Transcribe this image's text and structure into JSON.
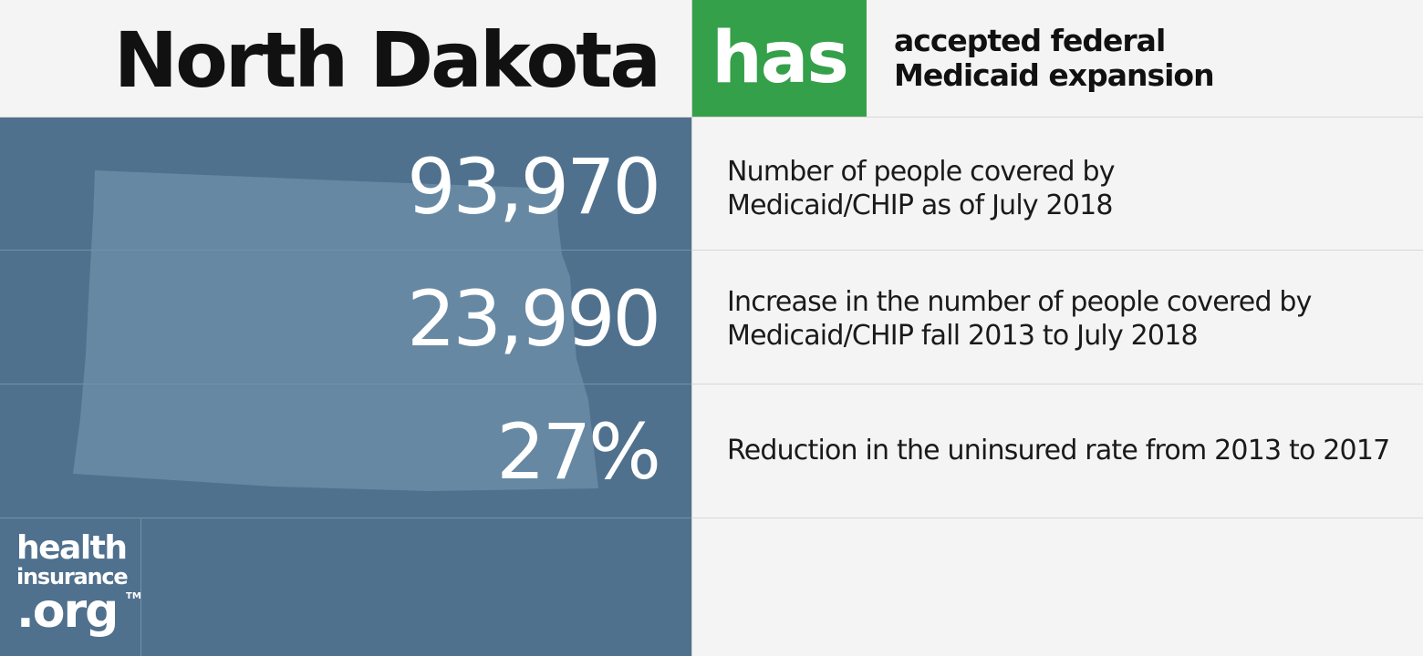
{
  "header": {
    "state_name": "North Dakota",
    "status_badge": "has",
    "status_line_1": "accepted federal",
    "status_line_2": "Medicaid expansion"
  },
  "colors": {
    "badge_green": "#35a04a",
    "panel_blue": "#4f718e",
    "state_shape": "#6688a2",
    "background": "#f4f4f4"
  },
  "stats": [
    {
      "value": "93,970",
      "desc_line_1": "Number of people covered by",
      "desc_line_2": "Medicaid/CHIP as of July 2018"
    },
    {
      "value": "23,990",
      "desc_line_1": "Increase in the number of people covered by",
      "desc_line_2": "Medicaid/CHIP fall 2013 to July 2018"
    },
    {
      "value": "27%",
      "desc_line_1": "Reduction in the uninsured rate from 2013 to 2017",
      "desc_line_2": ""
    }
  ],
  "logo": {
    "line_1": "health",
    "line_2": "insurance",
    "line_3": ".org",
    "trademark": "TM"
  }
}
